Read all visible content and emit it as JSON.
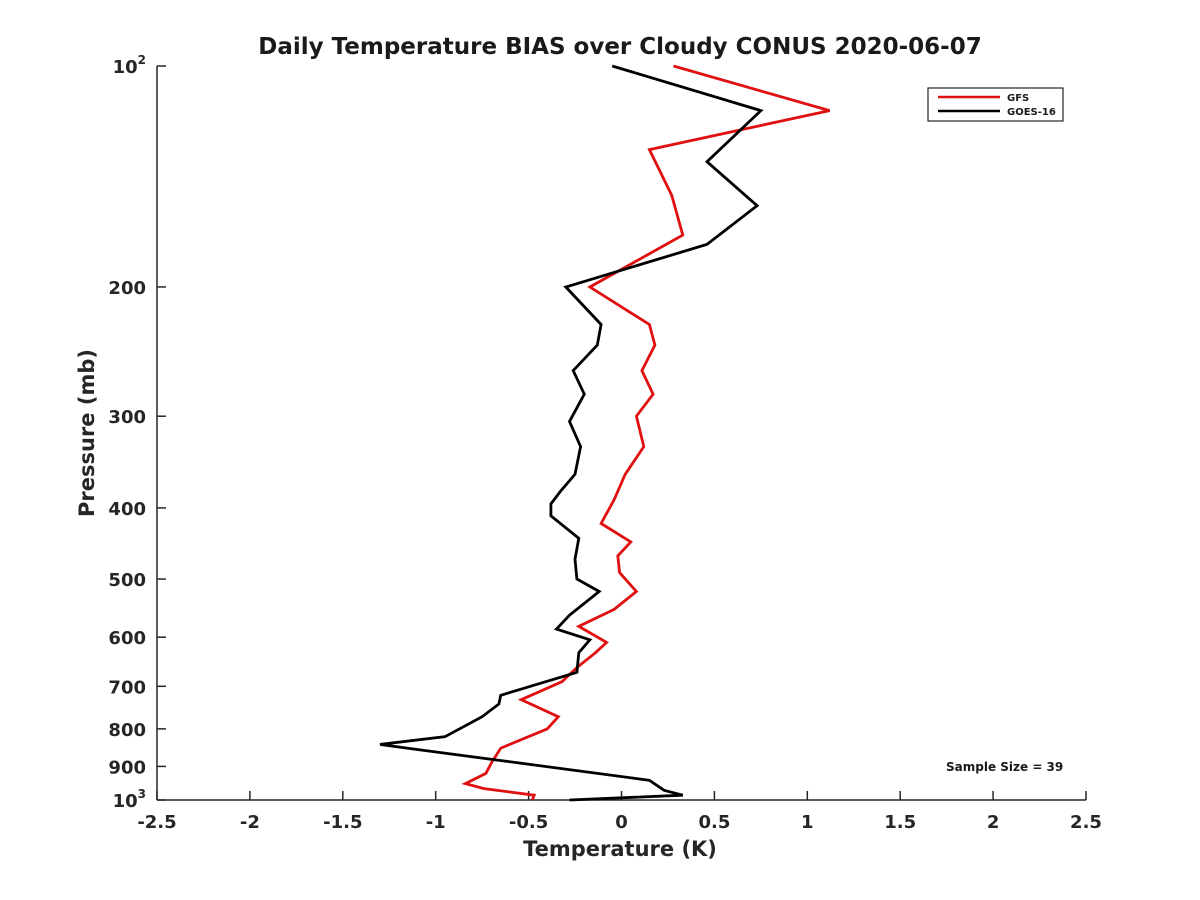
{
  "chart_data": {
    "type": "line",
    "title": "Daily Temperature BIAS over Cloudy CONUS 2020-06-07",
    "xlabel": "Temperature (K)",
    "ylabel": "Pressure (mb)",
    "xlim": [
      -2.5,
      2.5
    ],
    "ylim": [
      100,
      1000
    ],
    "yscale": "log",
    "y_reversed": true,
    "x_ticks": [
      "-2.5",
      "-2",
      "-1.5",
      "-1",
      "-0.5",
      "0",
      "0.5",
      "1",
      "1.5",
      "2",
      "2.5"
    ],
    "y_ticks": [
      {
        "value": 100,
        "base": "10",
        "exp": "2"
      },
      {
        "value": 200,
        "label": "200"
      },
      {
        "value": 300,
        "label": "300"
      },
      {
        "value": 400,
        "label": "400"
      },
      {
        "value": 500,
        "label": "500"
      },
      {
        "value": 600,
        "label": "600"
      },
      {
        "value": 700,
        "label": "700"
      },
      {
        "value": 800,
        "label": "800"
      },
      {
        "value": 900,
        "label": "900"
      },
      {
        "value": 1000,
        "base": "10",
        "exp": "3"
      }
    ],
    "grid": false,
    "legend_position": "top-right",
    "annotation": "Sample Size = 39",
    "series": [
      {
        "name": "GFS",
        "color": "#e01010",
        "points": [
          [
            0.28,
            100
          ],
          [
            1.12,
            115
          ],
          [
            0.15,
            130
          ],
          [
            0.27,
            150
          ],
          [
            0.33,
            170
          ],
          [
            -0.17,
            200
          ],
          [
            0.15,
            225
          ],
          [
            0.18,
            240
          ],
          [
            0.11,
            260
          ],
          [
            0.17,
            280
          ],
          [
            0.08,
            300
          ],
          [
            0.12,
            330
          ],
          [
            0.02,
            360
          ],
          [
            -0.04,
            390
          ],
          [
            -0.11,
            420
          ],
          [
            0.05,
            445
          ],
          [
            -0.02,
            465
          ],
          [
            -0.01,
            490
          ],
          [
            0.08,
            520
          ],
          [
            -0.04,
            550
          ],
          [
            -0.23,
            580
          ],
          [
            -0.08,
            610
          ],
          [
            -0.14,
            630
          ],
          [
            -0.24,
            660
          ],
          [
            -0.32,
            690
          ],
          [
            -0.54,
            730
          ],
          [
            -0.34,
            770
          ],
          [
            -0.4,
            800
          ],
          [
            -0.65,
            850
          ],
          [
            -0.7,
            890
          ],
          [
            -0.73,
            920
          ],
          [
            -0.84,
            950
          ],
          [
            -0.74,
            965
          ],
          [
            -0.47,
            985
          ],
          [
            -0.48,
            1000
          ]
        ]
      },
      {
        "name": "GOES-16",
        "color": "#000000",
        "points": [
          [
            -0.05,
            100
          ],
          [
            0.75,
            115
          ],
          [
            0.46,
            135
          ],
          [
            0.73,
            155
          ],
          [
            0.46,
            175
          ],
          [
            -0.3,
            200
          ],
          [
            -0.11,
            225
          ],
          [
            -0.13,
            240
          ],
          [
            -0.26,
            260
          ],
          [
            -0.2,
            280
          ],
          [
            -0.28,
            305
          ],
          [
            -0.22,
            330
          ],
          [
            -0.25,
            360
          ],
          [
            -0.33,
            380
          ],
          [
            -0.38,
            395
          ],
          [
            -0.38,
            410
          ],
          [
            -0.23,
            440
          ],
          [
            -0.25,
            470
          ],
          [
            -0.24,
            500
          ],
          [
            -0.12,
            520
          ],
          [
            -0.28,
            560
          ],
          [
            -0.35,
            585
          ],
          [
            -0.17,
            605
          ],
          [
            -0.23,
            630
          ],
          [
            -0.24,
            670
          ],
          [
            -0.65,
            720
          ],
          [
            -0.66,
            740
          ],
          [
            -0.75,
            770
          ],
          [
            -0.95,
            820
          ],
          [
            -1.3,
            840
          ],
          [
            -1.15,
            850
          ],
          [
            0.15,
            940
          ],
          [
            0.23,
            970
          ],
          [
            0.33,
            985
          ],
          [
            -0.28,
            1000
          ]
        ]
      }
    ]
  }
}
